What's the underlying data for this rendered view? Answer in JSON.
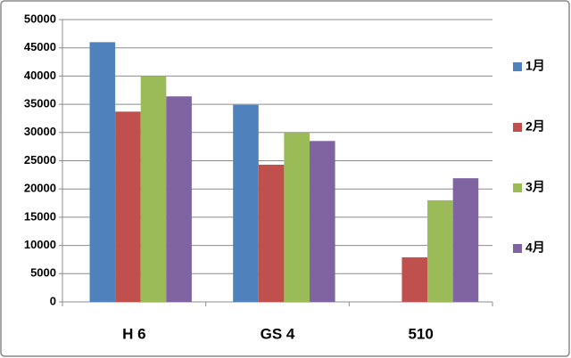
{
  "chart_data": {
    "type": "bar",
    "categories": [
      "H 6",
      "GS 4",
      "510"
    ],
    "series": [
      {
        "name": "1月",
        "color": "#4f81bd",
        "values": [
          46000,
          34900,
          0
        ]
      },
      {
        "name": "2月",
        "color": "#c0504d",
        "values": [
          33700,
          24300,
          7900
        ]
      },
      {
        "name": "3月",
        "color": "#9bbb59",
        "values": [
          40000,
          30000,
          18000
        ]
      },
      {
        "name": "4月",
        "color": "#8064a2",
        "values": [
          36400,
          28500,
          21900
        ]
      }
    ],
    "ylim": [
      0,
      50000
    ],
    "yticks": [
      0,
      5000,
      10000,
      15000,
      20000,
      25000,
      30000,
      35000,
      40000,
      45000,
      50000
    ],
    "grid": true,
    "legend": "right"
  }
}
